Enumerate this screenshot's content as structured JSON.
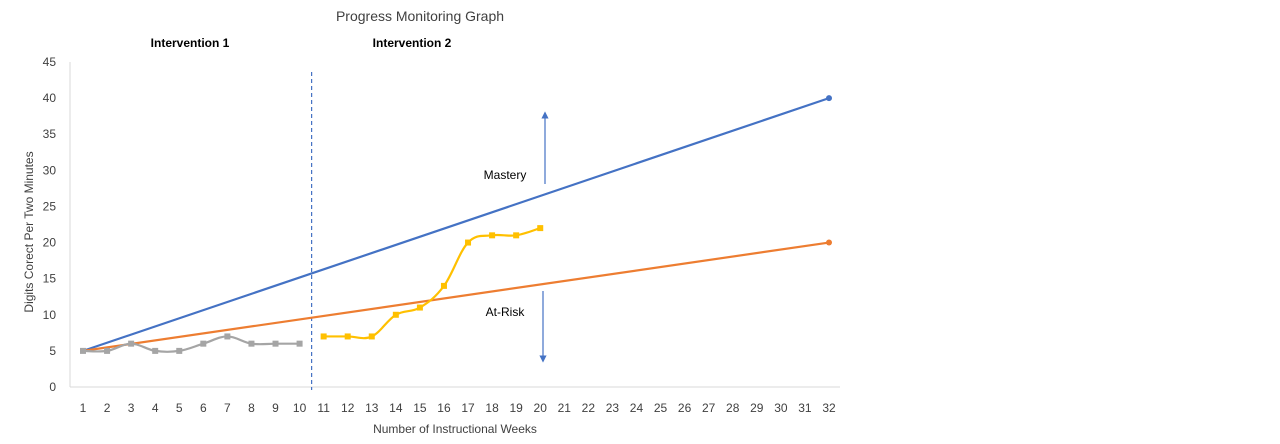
{
  "chart_data": {
    "type": "line",
    "title": "Progress Monitoring Graph",
    "xlabel": "Number of Instructional Weeks",
    "ylabel": "Digits Corect Per Two Minutes",
    "x_categories": [
      1,
      2,
      3,
      4,
      5,
      6,
      7,
      8,
      9,
      10,
      11,
      12,
      13,
      14,
      15,
      16,
      17,
      18,
      19,
      20,
      21,
      22,
      23,
      24,
      25,
      26,
      27,
      28,
      29,
      30,
      31,
      32
    ],
    "ylim": [
      0,
      45
    ],
    "yticks": [
      0,
      5,
      10,
      15,
      20,
      25,
      30,
      35,
      40,
      45
    ],
    "grid": false,
    "phase_labels": [
      "Intervention 1",
      "Intervention 2"
    ],
    "phase_change_after_week": 10,
    "series": [
      {
        "color": "#4472C4",
        "x": [
          1,
          32
        ],
        "y": [
          5,
          40
        ],
        "marker": "circle-end"
      },
      {
        "color": "#ED7D31",
        "x": [
          1,
          32
        ],
        "y": [
          5,
          20
        ],
        "marker": "circle-end"
      },
      {
        "color": "#A5A5A5",
        "x": [
          1,
          2,
          3,
          4,
          5,
          6,
          7,
          8,
          9,
          10
        ],
        "y": [
          5,
          5,
          6,
          5,
          5,
          6,
          7,
          6,
          6,
          6
        ],
        "marker": "square"
      },
      {
        "color": "#FFC000",
        "x": [
          11,
          12,
          13,
          14,
          15,
          16,
          17,
          18,
          19,
          20
        ],
        "y": [
          7,
          7,
          7,
          10,
          11,
          14,
          20,
          21,
          21,
          22
        ],
        "marker": "square"
      }
    ],
    "annotations": [
      {
        "text": "Mastery",
        "arrow": "up",
        "color": "#4472C4"
      },
      {
        "text": "At-Risk",
        "arrow": "down",
        "color": "#4472C4"
      }
    ]
  }
}
